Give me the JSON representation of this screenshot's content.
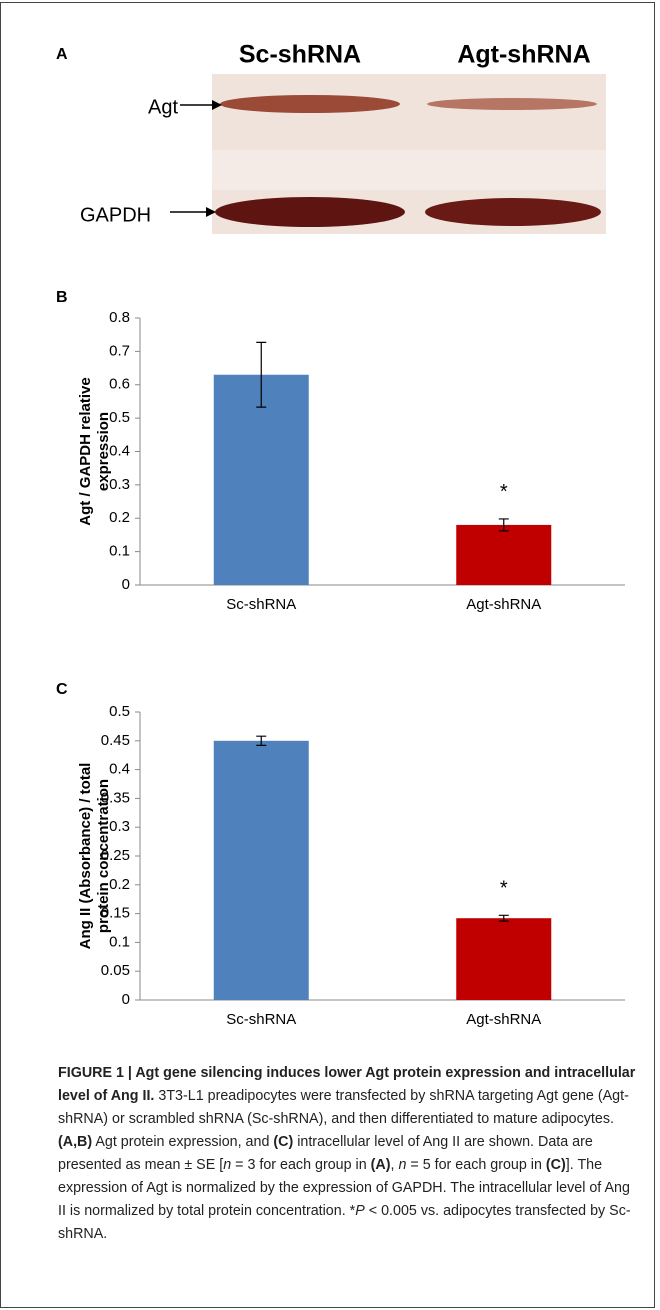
{
  "panel_a": {
    "panel_label": "A",
    "lanes": [
      "Sc-shRNA",
      "Agt-shRNA"
    ],
    "bands": [
      "Agt",
      "GAPDH"
    ]
  },
  "chart_data": [
    {
      "type": "bar",
      "panel_label": "B",
      "ylabel": [
        "Agt / GAPDH relative",
        "expression"
      ],
      "categories": [
        "Sc-shRNA",
        "Agt-shRNA"
      ],
      "values": [
        0.63,
        0.18
      ],
      "errors": [
        0.097,
        0.018
      ],
      "colors": [
        "#4f81bd",
        "#c00000"
      ],
      "annotation": "*",
      "ylim": [
        0,
        0.8
      ],
      "yticks": [
        0,
        0.1,
        0.2,
        0.3,
        0.4,
        0.5,
        0.6,
        0.7,
        0.8
      ]
    },
    {
      "type": "bar",
      "panel_label": "C",
      "ylabel": [
        "Ang II (Absorbance) / total",
        "protein concentration"
      ],
      "categories": [
        "Sc-shRNA",
        "Agt-shRNA"
      ],
      "values": [
        0.45,
        0.142
      ],
      "errors": [
        0.008,
        0.005
      ],
      "colors": [
        "#4f81bd",
        "#c00000"
      ],
      "annotation": "*",
      "ylim": [
        0,
        0.5
      ],
      "yticks": [
        0,
        0.05,
        0.1,
        0.15,
        0.2,
        0.25,
        0.3,
        0.35,
        0.4,
        0.45,
        0.5
      ]
    }
  ],
  "caption": {
    "title": "FIGURE 1 | Agt gene silencing induces lower Agt protein expression and intracellular level of Ang II.",
    "body": [
      " 3T3-L1 preadipocytes were transfected by shRNA targeting Agt gene (Agt-shRNA) or scrambled shRNA (Sc-shRNA), and then differentiated to mature adipocytes. ",
      "(A,B)",
      " Agt protein expression, and ",
      "(C)",
      " intracellular level of Ang II are shown. Data are presented as mean ± SE [",
      "n",
      " = 3 for each group in ",
      "(A)",
      ", ",
      "n",
      " = 5 for each group in ",
      "(C)",
      "]. The expression of Agt is normalized by the expression of GAPDH. The intracellular level of Ang II is normalized by total protein concentration. ",
      "*",
      "P",
      " < 0.005 vs. adipocytes transfected by Sc-shRNA."
    ]
  }
}
